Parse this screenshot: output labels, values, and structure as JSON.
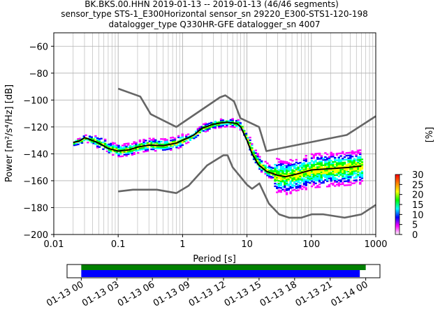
{
  "chart_data": [
    {
      "type": "heatmap",
      "title_lines": [
        "BK.BKS.00.HHN   2019-01-13 -- 2019-01-13  (46/46 segments)",
        "sensor_type STS-1_E300Horizontal sensor_sn 29220_E300-STS1-120-198",
        "datalogger_type Q330HR-GFE datalogger_sn 4007"
      ],
      "xlabel": "Period [s]",
      "ylabel": "Power [m²/s⁴/Hz] [dB]",
      "xscale": "log",
      "xlim": [
        0.01,
        1000
      ],
      "ylim": [
        -200,
        -50
      ],
      "x_ticks": [
        0.01,
        0.1,
        1,
        10,
        100,
        1000
      ],
      "x_tick_labels": [
        "0.01",
        "0.1",
        "1",
        "10",
        "100",
        "1000"
      ],
      "y_ticks": [
        -200,
        -180,
        -160,
        -140,
        -120,
        -100,
        -80,
        -60
      ],
      "y_tick_labels": [
        "−200",
        "−180",
        "−160",
        "−140",
        "−120",
        "−100",
        "−80",
        "−60"
      ],
      "grid": true,
      "colorbar": {
        "label": "[%]",
        "range": [
          0,
          30
        ],
        "ticks": [
          0,
          5,
          10,
          15,
          20,
          25,
          30
        ],
        "tick_labels": [
          "0",
          "5",
          "10",
          "15",
          "20",
          "25",
          "30"
        ],
        "colors": [
          "#ffffff",
          "#ff00ff",
          "#0000ff",
          "#00ffff",
          "#00ff00",
          "#ffff00",
          "#ff8000",
          "#ff0000"
        ]
      },
      "series": [
        {
          "role": "mean",
          "color": "#000000",
          "x": [
            0.02,
            0.025,
            0.03,
            0.035,
            0.05,
            0.07,
            0.1,
            0.15,
            0.2,
            0.3,
            0.5,
            0.8,
            1,
            1.5,
            2,
            3,
            4,
            5,
            6,
            7,
            8,
            10,
            12,
            15,
            20,
            30,
            40,
            60,
            100,
            200,
            400,
            600
          ],
          "y": [
            -131.5,
            -130.5,
            -128,
            -129,
            -132,
            -136,
            -138,
            -137,
            -135,
            -133.5,
            -134,
            -132,
            -130,
            -126,
            -121,
            -118,
            -117,
            -116.5,
            -117,
            -117.5,
            -120,
            -130,
            -140,
            -148,
            -153,
            -156,
            -157,
            -155,
            -152,
            -151,
            -150,
            -149
          ]
        },
        {
          "role": "high_noise_model",
          "color": "#666666",
          "x": [
            0.1,
            0.22,
            0.32,
            0.8,
            3.8,
            4.6,
            6.3,
            7.9,
            15.4,
            20,
            354.8,
            1000
          ],
          "y": [
            -91.5,
            -97.4,
            -110.5,
            -120,
            -98,
            -96.5,
            -101,
            -113.5,
            -120,
            -138,
            -126,
            -112
          ]
        },
        {
          "role": "low_noise_model",
          "color": "#666666",
          "x": [
            0.1,
            0.17,
            0.4,
            0.8,
            1.24,
            2.4,
            4.3,
            5,
            6,
            10,
            12,
            15.6,
            21.9,
            31.6,
            45,
            70,
            101,
            154,
            328,
            600,
            1000
          ],
          "y": [
            -168,
            -166.7,
            -166.7,
            -169.2,
            -163.7,
            -148.6,
            -141.1,
            -141.1,
            -150,
            -163,
            -166,
            -162,
            -177,
            -185,
            -187.5,
            -187.5,
            -185,
            -185,
            -187.5,
            -185,
            -178
          ]
        }
      ]
    },
    {
      "type": "bar",
      "x_tick_labels": [
        "01-13 00",
        "01-13 03",
        "01-13 06",
        "01-13 09",
        "01-13 12",
        "01-13 15",
        "01-13 18",
        "01-13 21",
        "01-14 00"
      ],
      "x_hours": [
        0,
        3,
        6,
        9,
        12,
        15,
        18,
        21,
        24
      ],
      "xlim_hours": [
        -1.2,
        25.2
      ],
      "series": [
        {
          "color": "#008000",
          "start_hour": 0,
          "end_hour": 24.0
        },
        {
          "color": "#0000ff",
          "start_hour": 0,
          "end_hour": 23.5
        }
      ]
    }
  ]
}
